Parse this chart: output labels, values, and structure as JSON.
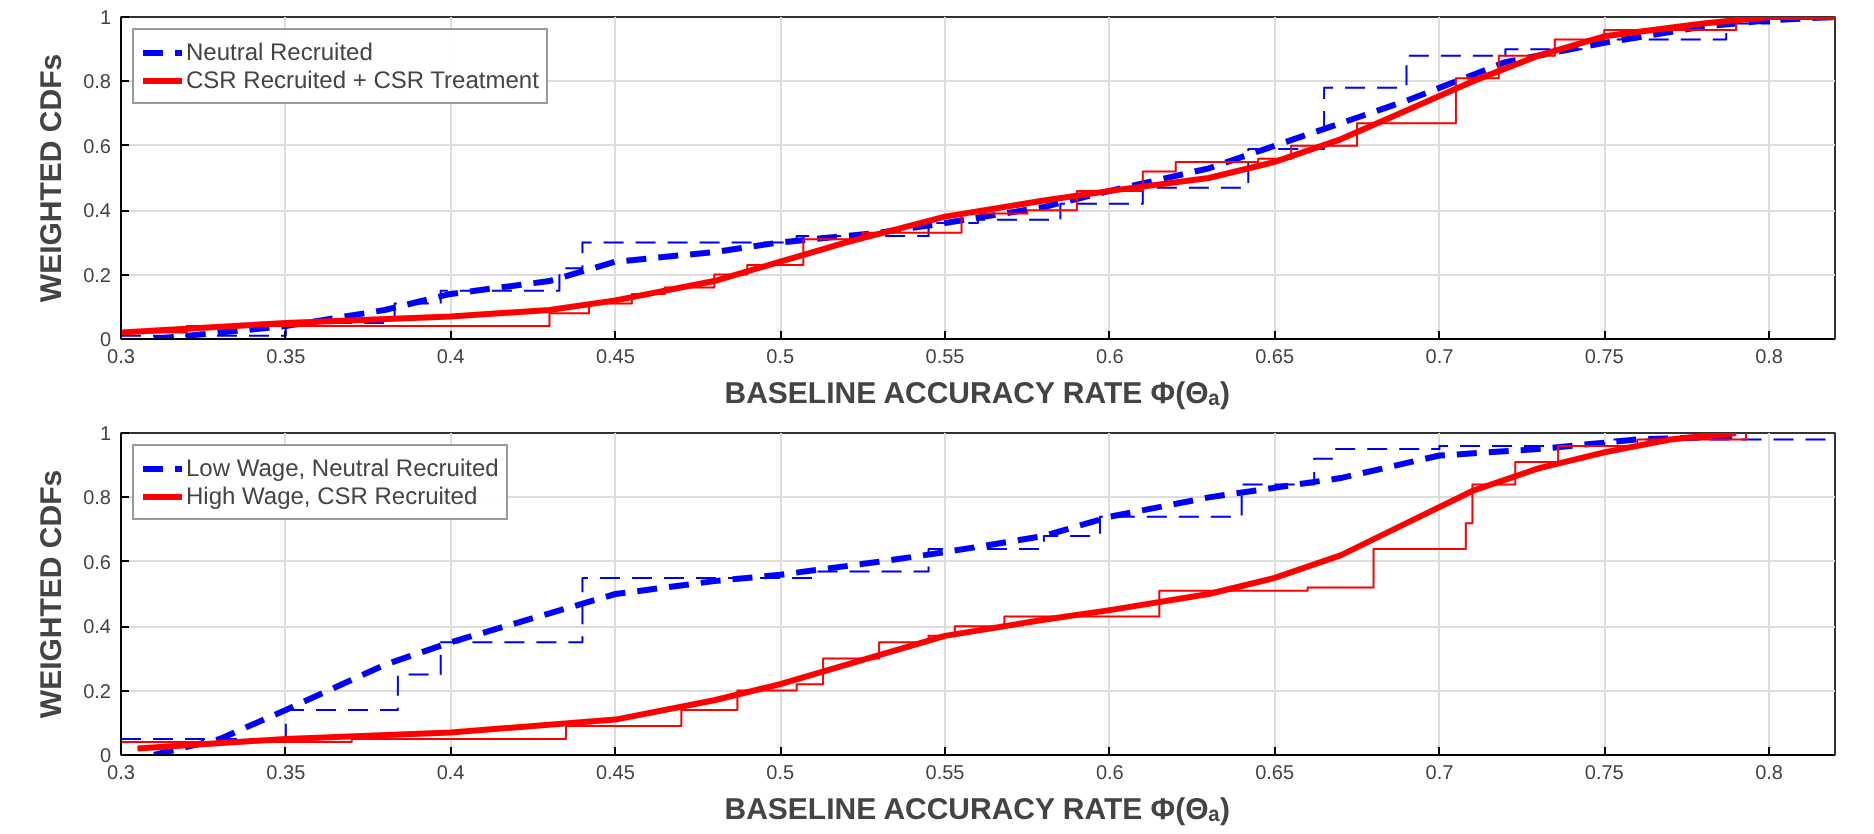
{
  "chart_data": [
    {
      "type": "line",
      "xlabel": "BASELINE ACCURACY RATE Φ(Θₐ)",
      "ylabel": "WEIGHTED CDFs",
      "xlim": [
        0.3,
        0.82
      ],
      "ylim": [
        0,
        1
      ],
      "xticks": [
        0.3,
        0.35,
        0.4,
        0.45,
        0.5,
        0.55,
        0.6,
        0.65,
        0.7,
        0.75,
        0.8
      ],
      "yticks": [
        0,
        0.2,
        0.4,
        0.6,
        0.8,
        1
      ],
      "grid": true,
      "legend": "top left",
      "marker": "none",
      "series": [
        {
          "name": "Neutral Recruited",
          "color": "#0000ff",
          "line_style": "dashed",
          "x": [
            0.31,
            0.33,
            0.35,
            0.38,
            0.4,
            0.43,
            0.45,
            0.48,
            0.5,
            0.53,
            0.55,
            0.58,
            0.6,
            0.63,
            0.65,
            0.67,
            0.69,
            0.72,
            0.75,
            0.78,
            0.8,
            0.82
          ],
          "values": [
            0,
            0.02,
            0.04,
            0.09,
            0.14,
            0.18,
            0.24,
            0.27,
            0.3,
            0.33,
            0.36,
            0.41,
            0.46,
            0.53,
            0.6,
            0.67,
            0.74,
            0.86,
            0.92,
            0.97,
            0.99,
            1
          ]
        },
        {
          "type": "step",
          "color": "#0000ff",
          "line_style": "dashed",
          "x": [
            0.3,
            0.35,
            0.383,
            0.397,
            0.433,
            0.44,
            0.505,
            0.545,
            0.56,
            0.585,
            0.61,
            0.642,
            0.665,
            0.69,
            0.72,
            0.745,
            0.787,
            0.8,
            0.82
          ],
          "values": [
            0.01,
            0.05,
            0.11,
            0.15,
            0.22,
            0.3,
            0.32,
            0.36,
            0.37,
            0.42,
            0.47,
            0.59,
            0.78,
            0.88,
            0.9,
            0.93,
            0.98,
            1,
            1
          ]
        },
        {
          "name": "CSR Recruited + CSR Treatment",
          "color": "#ff0000",
          "line_style": "solid",
          "x": [
            0.3,
            0.35,
            0.4,
            0.43,
            0.45,
            0.48,
            0.5,
            0.52,
            0.55,
            0.58,
            0.6,
            0.63,
            0.65,
            0.67,
            0.69,
            0.71,
            0.73,
            0.75,
            0.78,
            0.8,
            0.82
          ],
          "values": [
            0.02,
            0.05,
            0.07,
            0.09,
            0.12,
            0.18,
            0.24,
            0.3,
            0.38,
            0.43,
            0.46,
            0.5,
            0.55,
            0.62,
            0.71,
            0.8,
            0.88,
            0.94,
            0.98,
            1,
            1
          ]
        },
        {
          "type": "step",
          "color": "#ff0000",
          "line_style": "solid",
          "x": [
            0.3,
            0.32,
            0.43,
            0.442,
            0.455,
            0.465,
            0.48,
            0.49,
            0.507,
            0.525,
            0.555,
            0.575,
            0.59,
            0.61,
            0.62,
            0.645,
            0.655,
            0.675,
            0.705,
            0.718,
            0.735,
            0.75,
            0.79,
            0.82
          ],
          "values": [
            0.02,
            0.04,
            0.08,
            0.11,
            0.14,
            0.16,
            0.2,
            0.23,
            0.31,
            0.33,
            0.39,
            0.4,
            0.46,
            0.52,
            0.55,
            0.56,
            0.6,
            0.67,
            0.81,
            0.88,
            0.93,
            0.96,
            1,
            1
          ]
        }
      ]
    },
    {
      "type": "line",
      "xlabel": "BASELINE ACCURACY RATE Φ(Θₐ)",
      "ylabel": "WEIGHTED CDFs",
      "xlim": [
        0.3,
        0.82
      ],
      "ylim": [
        0,
        1
      ],
      "xticks": [
        0.3,
        0.35,
        0.4,
        0.45,
        0.5,
        0.55,
        0.6,
        0.65,
        0.7,
        0.75,
        0.8
      ],
      "yticks": [
        0,
        0.2,
        0.4,
        0.6,
        0.8,
        1
      ],
      "grid": true,
      "legend": "top left",
      "marker": "none",
      "series": [
        {
          "name": "Low Wage, Neutral Recruited",
          "color": "#0000ff",
          "line_style": "dashed",
          "x": [
            0.31,
            0.33,
            0.35,
            0.38,
            0.4,
            0.43,
            0.45,
            0.48,
            0.5,
            0.53,
            0.55,
            0.58,
            0.6,
            0.63,
            0.65,
            0.67,
            0.7,
            0.73,
            0.76,
            0.79
          ],
          "values": [
            0,
            0.05,
            0.14,
            0.28,
            0.35,
            0.44,
            0.5,
            0.54,
            0.56,
            0.6,
            0.63,
            0.68,
            0.74,
            0.8,
            0.83,
            0.86,
            0.93,
            0.95,
            0.98,
            0.99
          ]
        },
        {
          "type": "step",
          "color": "#0000ff",
          "line_style": "dashed",
          "x": [
            0.3,
            0.35,
            0.384,
            0.397,
            0.44,
            0.51,
            0.545,
            0.58,
            0.597,
            0.64,
            0.662,
            0.668,
            0.7,
            0.75,
            0.82
          ],
          "values": [
            0.05,
            0.14,
            0.25,
            0.35,
            0.55,
            0.57,
            0.64,
            0.68,
            0.74,
            0.84,
            0.92,
            0.95,
            0.96,
            0.98,
            0.97
          ]
        },
        {
          "name": "High Wage, CSR Recruited",
          "color": "#ff0000",
          "line_style": "solid",
          "x": [
            0.305,
            0.35,
            0.4,
            0.45,
            0.48,
            0.5,
            0.53,
            0.55,
            0.58,
            0.6,
            0.63,
            0.65,
            0.67,
            0.69,
            0.71,
            0.73,
            0.75,
            0.77,
            0.79
          ],
          "values": [
            0.02,
            0.05,
            0.07,
            0.11,
            0.17,
            0.22,
            0.31,
            0.37,
            0.42,
            0.45,
            0.5,
            0.55,
            0.62,
            0.72,
            0.82,
            0.89,
            0.94,
            0.98,
            1
          ]
        },
        {
          "type": "step",
          "color": "#ff0000",
          "line_style": "solid",
          "x": [
            0.3,
            0.37,
            0.435,
            0.47,
            0.487,
            0.505,
            0.513,
            0.53,
            0.545,
            0.553,
            0.568,
            0.615,
            0.66,
            0.68,
            0.708,
            0.71,
            0.723,
            0.736,
            0.76,
            0.793
          ],
          "values": [
            0.04,
            0.05,
            0.09,
            0.14,
            0.2,
            0.22,
            0.3,
            0.35,
            0.37,
            0.4,
            0.43,
            0.51,
            0.52,
            0.64,
            0.72,
            0.84,
            0.91,
            0.96,
            0.98,
            1
          ]
        }
      ]
    }
  ]
}
